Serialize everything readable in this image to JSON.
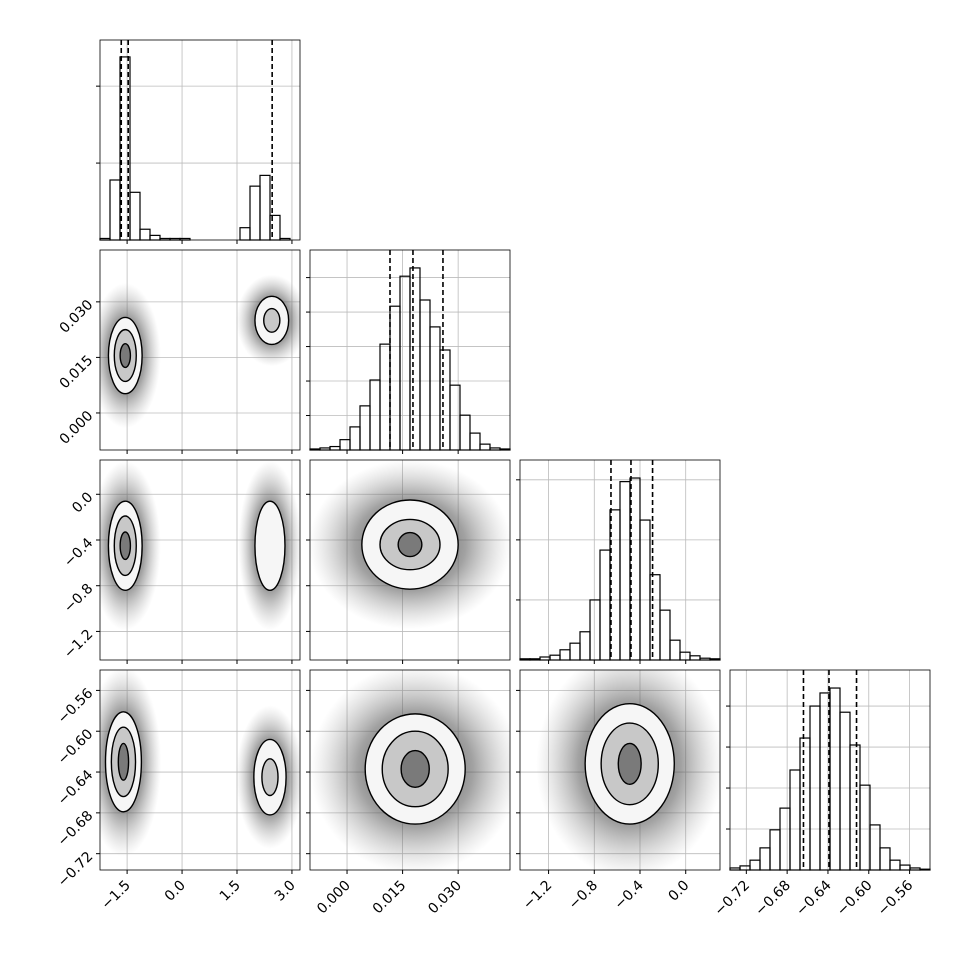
{
  "chart_data": {
    "type": "corner",
    "params": [
      {
        "lim": [
          -2.24,
          3.22
        ],
        "ticks": [
          {
            "value": -1.5,
            "label": "−1.5"
          },
          {
            "value": 0.0,
            "label": "0.0"
          },
          {
            "value": 1.5,
            "label": "1.5"
          },
          {
            "value": 3.0,
            "label": "3.0"
          }
        ],
        "hist": {
          "bins": [
            -2.24,
            -1.967,
            -1.694,
            -1.421,
            -1.148,
            -0.875,
            -0.602,
            -0.329,
            -0.056,
            0.217,
            0.49,
            0.763,
            1.036,
            1.309,
            1.582,
            1.855,
            2.128,
            2.401,
            2.674,
            2.947,
            3.22
          ],
          "counts": [
            0.01,
            0.39,
            1.19,
            0.31,
            0.07,
            0.03,
            0.01,
            0.01,
            0.01,
            0,
            0,
            0,
            0,
            0,
            0.08,
            0.35,
            0.42,
            0.16,
            0.01,
            0
          ],
          "ylim": [
            0,
            1.3
          ],
          "yticks": [
            0.5,
            1
          ]
        },
        "quantiles": [
          -1.66,
          -1.47,
          2.46
        ]
      },
      {
        "lim": [
          -0.01,
          0.044
        ],
        "ticks": [
          {
            "value": 0,
            "label": "0.000"
          },
          {
            "value": 0.015,
            "label": "0.015"
          },
          {
            "value": 0.03,
            "label": "0.030"
          }
        ],
        "hist": {
          "bins": [
            -0.01,
            -0.0073,
            -0.0046,
            -0.0019,
            0.0008,
            0.0035,
            0.0062,
            0.0089,
            0.0116,
            0.0143,
            0.017,
            0.0197,
            0.0224,
            0.0251,
            0.0278,
            0.0305,
            0.0332,
            0.0359,
            0.0386,
            0.0413,
            0.044
          ],
          "counts": [
            0.03,
            0.06,
            0.1,
            0.3,
            0.67,
            1.28,
            2.03,
            3.07,
            4.17,
            5.04,
            5.28,
            4.35,
            3.57,
            2.9,
            1.88,
            1.01,
            0.49,
            0.17,
            0.06,
            0.03
          ],
          "ylim": [
            0,
            5.8
          ],
          "yticks": [
            1,
            2,
            3,
            4,
            5
          ]
        },
        "quantiles": [
          0.0116,
          0.0178,
          0.0259
        ]
      },
      {
        "lim": [
          -1.45,
          0.3
        ],
        "ticks": [
          {
            "value": -1.2,
            "label": "−1.2"
          },
          {
            "value": -0.8,
            "label": "−0.8"
          },
          {
            "value": -0.4,
            "label": "−0.4"
          },
          {
            "value": 0.0,
            "label": "0.0"
          }
        ],
        "hist": {
          "bins": [
            -1.45,
            -1.3625,
            -1.275,
            -1.1875,
            -1.1,
            -1.0125,
            -0.925,
            -0.8375,
            -0.75,
            -0.6625,
            -0.575,
            -0.4875,
            -0.4,
            -0.3125,
            -0.225,
            -0.1375,
            -0.05,
            0.0375,
            0.125,
            0.2125,
            0.3
          ],
          "counts": [
            0.02,
            0.02,
            0.05,
            0.08,
            0.17,
            0.28,
            0.47,
            1.0,
            1.83,
            2.5,
            2.97,
            3.03,
            2.33,
            1.42,
            0.83,
            0.33,
            0.13,
            0.07,
            0.03,
            0.02
          ],
          "ylim": [
            0,
            3.33
          ],
          "yticks": [
            1,
            2,
            3
          ]
        },
        "quantiles": [
          -0.654,
          -0.479,
          -0.29
        ]
      },
      {
        "lim": [
          -0.736,
          -0.54
        ],
        "ticks": [
          {
            "value": -0.72,
            "label": "−0.72"
          },
          {
            "value": -0.68,
            "label": "−0.68"
          },
          {
            "value": -0.64,
            "label": "−0.64"
          },
          {
            "value": -0.6,
            "label": "−0.60"
          },
          {
            "value": -0.56,
            "label": "−0.56"
          }
        ],
        "hist": {
          "bins": [
            -0.736,
            -0.7262,
            -0.7164,
            -0.7066,
            -0.6968,
            -0.687,
            -0.6772,
            -0.6674,
            -0.6576,
            -0.6478,
            -0.638,
            -0.6282,
            -0.6184,
            -0.6086,
            -0.5988,
            -0.589,
            -0.5792,
            -0.5694,
            -0.5596,
            -0.5498,
            -0.54
          ],
          "counts": [
            0.05,
            0.1,
            0.24,
            0.54,
            0.98,
            1.51,
            2.44,
            3.22,
            4.0,
            4.32,
            4.44,
            3.85,
            3.05,
            2.07,
            1.1,
            0.54,
            0.24,
            0.12,
            0.05,
            0.02
          ],
          "ylim": [
            0,
            4.88
          ],
          "yticks": [
            1,
            2,
            3,
            4
          ]
        },
        "quantiles": [
          -0.664,
          -0.639,
          -0.612
        ]
      }
    ],
    "pairs": {
      "1-0": [
        [
          {
            "x": -1.55,
            "y": 0.0155,
            "rx": 0.46,
            "ry": 0.0103
          },
          {
            "x": -1.55,
            "y": 0.0155,
            "rx": 0.3,
            "ry": 0.007
          },
          {
            "x": -1.55,
            "y": 0.0155,
            "rx": 0.14,
            "ry": 0.0032
          }
        ],
        [
          {
            "x": 2.45,
            "y": 0.025,
            "rx": 0.46,
            "ry": 0.0065
          },
          {
            "x": 2.45,
            "y": 0.025,
            "rx": 0.22,
            "ry": 0.0032
          }
        ]
      ],
      "2-0": [
        [
          {
            "x": -1.55,
            "y": -0.45,
            "rx": 0.46,
            "ry": 0.39
          },
          {
            "x": -1.55,
            "y": -0.45,
            "rx": 0.3,
            "ry": 0.26
          },
          {
            "x": -1.55,
            "y": -0.45,
            "rx": 0.14,
            "ry": 0.12
          }
        ],
        [
          {
            "x": 2.4,
            "y": -0.45,
            "rx": 0.41,
            "ry": 0.39
          }
        ]
      ],
      "3-0": [
        [
          {
            "x": -1.6,
            "y": -0.63,
            "rx": 0.49,
            "ry": 0.049
          },
          {
            "x": -1.6,
            "y": -0.63,
            "rx": 0.33,
            "ry": 0.034
          },
          {
            "x": -1.6,
            "y": -0.63,
            "rx": 0.14,
            "ry": 0.018
          }
        ],
        [
          {
            "x": 2.4,
            "y": -0.645,
            "rx": 0.44,
            "ry": 0.037
          },
          {
            "x": 2.4,
            "y": -0.645,
            "rx": 0.22,
            "ry": 0.018
          }
        ]
      ],
      "2-1": [
        [
          {
            "x": 0.017,
            "y": -0.44,
            "rx": 0.013,
            "ry": 0.39
          },
          {
            "x": 0.017,
            "y": -0.44,
            "rx": 0.0081,
            "ry": 0.22
          },
          {
            "x": 0.017,
            "y": -0.44,
            "rx": 0.0032,
            "ry": 0.105
          }
        ]
      ],
      "3-1": [
        [
          {
            "x": 0.0184,
            "y": -0.637,
            "rx": 0.0135,
            "ry": 0.054
          },
          {
            "x": 0.0184,
            "y": -0.637,
            "rx": 0.0089,
            "ry": 0.037
          },
          {
            "x": 0.0184,
            "y": -0.637,
            "rx": 0.0038,
            "ry": 0.018
          }
        ]
      ],
      "3-2": [
        [
          {
            "x": -0.49,
            "y": -0.632,
            "rx": 0.39,
            "ry": 0.059
          },
          {
            "x": -0.49,
            "y": -0.632,
            "rx": 0.25,
            "ry": 0.04
          },
          {
            "x": -0.49,
            "y": -0.632,
            "rx": 0.1,
            "ry": 0.02
          }
        ]
      ]
    }
  }
}
